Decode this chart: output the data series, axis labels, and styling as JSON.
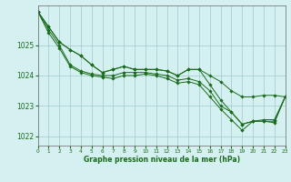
{
  "title": "Graphe pression niveau de la mer (hPa)",
  "background_color": "#d4f0f0",
  "grid_color": "#a0c8c8",
  "line_color": "#1a6b1a",
  "xlim": [
    0,
    23
  ],
  "ylim": [
    1021.7,
    1026.3
  ],
  "yticks": [
    1022,
    1023,
    1024,
    1025
  ],
  "xticks": [
    0,
    1,
    2,
    3,
    4,
    5,
    6,
    7,
    8,
    9,
    10,
    11,
    12,
    13,
    14,
    15,
    16,
    17,
    18,
    19,
    20,
    21,
    22,
    23
  ],
  "series": [
    [
      1026.1,
      1025.6,
      1025.1,
      1024.85,
      1024.65,
      1024.35,
      1024.1,
      1024.2,
      1024.3,
      1024.2,
      1024.2,
      1024.2,
      1024.15,
      1024.0,
      1024.2,
      1024.2,
      1024.0,
      1023.8,
      1023.5,
      1023.3,
      1023.3,
      1023.35,
      1023.35,
      1023.3
    ],
    [
      1026.1,
      1025.6,
      1025.1,
      1024.85,
      1024.65,
      1024.35,
      1024.1,
      1024.2,
      1024.3,
      1024.2,
      1024.2,
      1024.2,
      1024.15,
      1024.0,
      1024.2,
      1024.2,
      1023.7,
      1023.2,
      1022.8,
      1022.4,
      1022.5,
      1022.55,
      1022.55,
      1023.3
    ],
    [
      1026.1,
      1025.5,
      1025.0,
      1024.35,
      1024.15,
      1024.05,
      1024.0,
      1024.0,
      1024.1,
      1024.1,
      1024.1,
      1024.05,
      1024.0,
      1023.85,
      1023.9,
      1023.8,
      1023.5,
      1023.0,
      1022.8,
      1022.4,
      1022.5,
      1022.5,
      1022.5,
      1023.3
    ],
    [
      1026.1,
      1025.4,
      1024.9,
      1024.3,
      1024.1,
      1024.0,
      1023.95,
      1023.9,
      1024.0,
      1024.0,
      1024.05,
      1024.0,
      1023.9,
      1023.75,
      1023.8,
      1023.7,
      1023.3,
      1022.9,
      1022.55,
      1022.2,
      1022.5,
      1022.5,
      1022.45,
      1023.3
    ]
  ]
}
